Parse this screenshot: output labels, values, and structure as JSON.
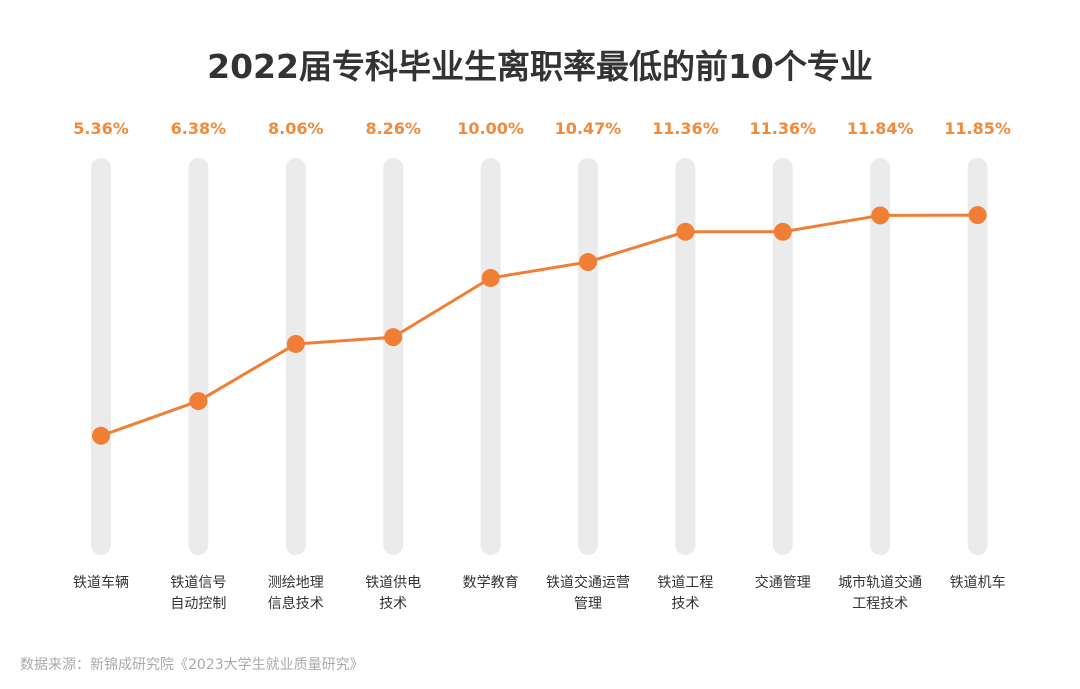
{
  "chart_data": {
    "type": "line",
    "title": "2022届专科毕业生离职率最低的前10个专业",
    "categories": [
      "铁道车辆",
      "铁道信号\n自动控制",
      "测绘地理\n信息技术",
      "铁道供电\n技术",
      "数学教育",
      "铁道交通运营\n管理",
      "铁道工程\n技术",
      "交通管理",
      "城市轨道交通\n工程技术",
      "铁道机车"
    ],
    "values": [
      5.36,
      6.38,
      8.06,
      8.26,
      10.0,
      10.47,
      11.36,
      11.36,
      11.84,
      11.85
    ],
    "data_labels": [
      "5.36%",
      "6.38%",
      "8.06%",
      "8.26%",
      "10.00%",
      "10.47%",
      "11.36%",
      "11.36%",
      "11.84%",
      "11.85%"
    ],
    "ylim": [
      2,
      13
    ],
    "grid": false,
    "colors": {
      "line": "#f07f35",
      "label": "#f08a3c",
      "track": "#ebebeb"
    }
  },
  "source": "数据来源：新锦成研究院《2023大学生就业质量研究》"
}
